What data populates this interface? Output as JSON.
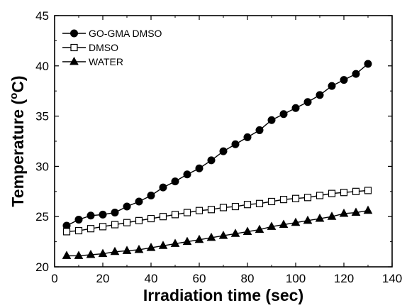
{
  "chart_data": {
    "type": "line",
    "xlabel": "Irradiation time (sec)",
    "ylabel_main": "Temperature (",
    "ylabel_sup": "o",
    "ylabel_tail": "C)",
    "xlim": [
      0,
      140
    ],
    "ylim": [
      20,
      45
    ],
    "xticks": [
      0,
      20,
      40,
      60,
      80,
      100,
      120,
      140
    ],
    "yticks": [
      20,
      25,
      30,
      35,
      40,
      45
    ],
    "grid": false,
    "legend_position": "top-left",
    "x": [
      5,
      10,
      15,
      20,
      25,
      30,
      35,
      40,
      45,
      50,
      55,
      60,
      65,
      70,
      75,
      80,
      85,
      90,
      95,
      100,
      105,
      110,
      115,
      120,
      125,
      130
    ],
    "series": [
      {
        "name": "GO-GMA DMSO",
        "marker": "circle-filled",
        "color": "#000000",
        "values": [
          24.1,
          24.7,
          25.1,
          25.2,
          25.4,
          26.0,
          26.5,
          27.1,
          27.9,
          28.5,
          29.2,
          29.8,
          30.6,
          31.5,
          32.2,
          32.9,
          33.6,
          34.6,
          35.2,
          35.8,
          36.4,
          37.1,
          38.0,
          38.6,
          39.2,
          40.2
        ]
      },
      {
        "name": "DMSO",
        "marker": "square-open",
        "color": "#000000",
        "values": [
          23.5,
          23.6,
          23.8,
          24.0,
          24.2,
          24.4,
          24.6,
          24.8,
          25.0,
          25.2,
          25.4,
          25.6,
          25.7,
          25.9,
          26.0,
          26.2,
          26.3,
          26.5,
          26.7,
          26.8,
          26.9,
          27.1,
          27.3,
          27.4,
          27.5,
          27.6
        ]
      },
      {
        "name": "WATER",
        "marker": "triangle-filled",
        "color": "#000000",
        "values": [
          21.1,
          21.1,
          21.2,
          21.3,
          21.5,
          21.6,
          21.7,
          21.9,
          22.1,
          22.3,
          22.5,
          22.7,
          22.9,
          23.1,
          23.3,
          23.5,
          23.7,
          24.0,
          24.2,
          24.4,
          24.6,
          24.8,
          25.0,
          25.3,
          25.4,
          25.6
        ]
      }
    ]
  }
}
